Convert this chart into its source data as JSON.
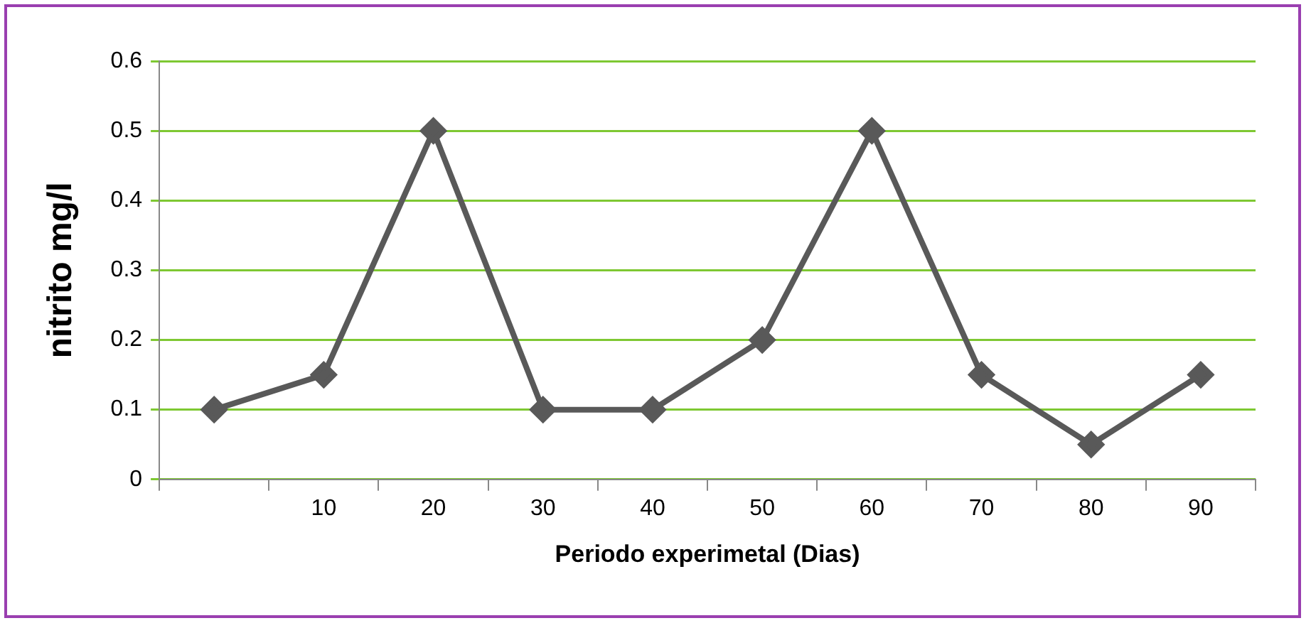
{
  "chart_data": {
    "type": "line",
    "xlabel": "Periodo experimetal (Dias)",
    "ylabel": "nitrito mg/l",
    "categories": [
      null,
      "10",
      "20",
      "30",
      "40",
      "50",
      "60",
      "70",
      "80",
      "90"
    ],
    "series": [
      {
        "color": "#595959",
        "values": [
          0.1,
          0.15,
          0.5,
          0.1,
          0.1,
          0.2,
          0.5,
          0.15,
          0.05,
          0.15
        ]
      }
    ],
    "ylim": [
      0,
      0.6
    ],
    "yticks": [
      0,
      0.1,
      0.2,
      0.3,
      0.4,
      0.5,
      0.6
    ],
    "grid": "y",
    "legend": false,
    "marker": "diamond",
    "line_style": "solid"
  }
}
